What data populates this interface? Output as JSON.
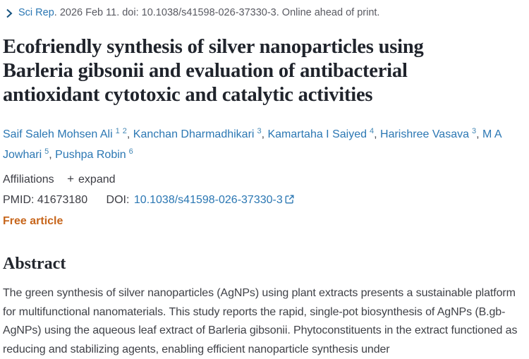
{
  "citation": {
    "journal": "Sci Rep",
    "details": ". 2026 Feb 11. doi: 10.1038/s41598-026-37330-3. Online ahead of print."
  },
  "title": {
    "lines": [
      "Ecofriendly synthesis of silver nanoparticles using",
      "Barleria gibsonii and evaluation of antibacterial",
      "antioxidant cytotoxic and catalytic activities"
    ]
  },
  "authors": [
    {
      "name": "Saif Saleh Mohsen Ali",
      "sups": [
        "1",
        "2"
      ]
    },
    {
      "name": "Kanchan Dharmadhikari",
      "sups": [
        "3"
      ]
    },
    {
      "name": "Kamartaha I Saiyed",
      "sups": [
        "4"
      ]
    },
    {
      "name": "Harishree Vasava",
      "sups": [
        "3"
      ]
    },
    {
      "name": "M A Jowhari",
      "sups": [
        "5"
      ]
    },
    {
      "name": "Pushpa Robin",
      "sups": [
        "6"
      ]
    }
  ],
  "authors_separator": ", ",
  "meta": {
    "affiliations_label": "Affiliations",
    "expand_label": "expand",
    "pmid_label": "PMID:",
    "pmid": "41673180",
    "doi_label": "DOI:",
    "doi": "10.1038/s41598-026-37330-3",
    "free_article": "Free article"
  },
  "abstract": {
    "heading": "Abstract",
    "text": "The green synthesis of silver nanoparticles (AgNPs) using plant extracts presents a sustainable platform for multifunctional nanomaterials. This study reports the rapid, single-pot biosynthesis of AgNPs (B.gb-AgNPs) using the aqueous leaf extract of Barleria gibsonii. Phytoconstituents in the extract functioned as reducing and stabilizing agents, enabling efficient nanoparticle synthesis under"
  },
  "icons": {
    "journal_chevron": "chevron-right",
    "expand_plus": "+",
    "doi_external": "external-link"
  },
  "colors": {
    "link_blue": "#2b77b3",
    "chevron_blue": "#15527f",
    "title_dark": "#20242c",
    "body_text": "#3f4147",
    "muted_text": "#595a62",
    "free_article_orange": "#c7661c",
    "background": "#ffffff"
  }
}
